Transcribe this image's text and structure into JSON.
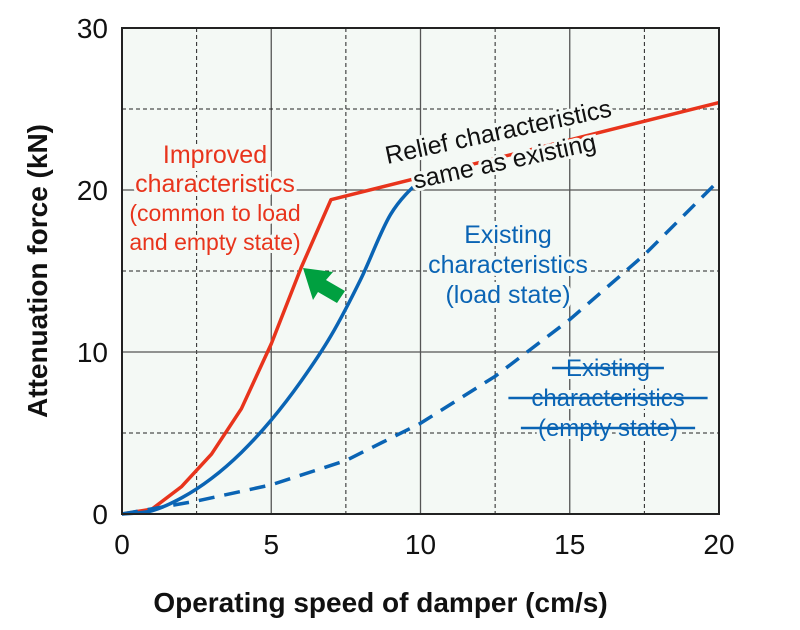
{
  "chart_data": {
    "type": "line",
    "xlabel": "Operating speed of damper (cm/s)",
    "ylabel": "Attenuation force (kN)",
    "xlim": [
      0,
      20
    ],
    "ylim": [
      0,
      30
    ],
    "xticks": [
      "0",
      "5",
      "10",
      "15",
      "20"
    ],
    "yticks": [
      "0",
      "10",
      "20",
      "30"
    ],
    "grid": true,
    "background_color": "#f4f9f5",
    "series": [
      {
        "color": "#e8341c",
        "style": "solid",
        "x": [
          0,
          1,
          2,
          3,
          4,
          5,
          6,
          7,
          20
        ],
        "y": [
          0,
          0.3,
          1.7,
          3.7,
          6.5,
          10.5,
          15.2,
          19.4,
          25.4
        ]
      },
      {
        "color": "#0a64b4",
        "style": "solid",
        "x": [
          0,
          1,
          2,
          3,
          4,
          5,
          6,
          7,
          8,
          9,
          10,
          10.5
        ],
        "y": [
          0,
          0.2,
          1.0,
          2.2,
          3.8,
          5.8,
          8.2,
          11.0,
          14.5,
          18.5,
          20.6,
          21.0
        ]
      },
      {
        "color": "#0a64b4",
        "style": "dashed",
        "x": [
          0,
          2.5,
          5,
          7.5,
          10,
          12.5,
          15,
          17.5,
          20
        ],
        "y": [
          0,
          0.8,
          1.8,
          3.3,
          5.6,
          8.5,
          12.0,
          16.0,
          20.6
        ]
      }
    ],
    "annotations": [
      {
        "lines": [
          "Improved",
          "characteristics",
          "(common to load",
          "and empty state)"
        ],
        "color": "#e8341c"
      },
      {
        "lines": [
          "Relief characteristics",
          "same as existing"
        ],
        "color": "#111111"
      },
      {
        "lines": [
          "Existing",
          "characteristics",
          "(load state)"
        ],
        "color": "#0a64b4"
      },
      {
        "lines": [
          "Existing",
          "characteristics",
          "(empty state)"
        ],
        "color": "#0a64b4",
        "strikethrough": true
      }
    ],
    "arrow": {
      "color": "#00a040",
      "direction": "up-left"
    }
  }
}
